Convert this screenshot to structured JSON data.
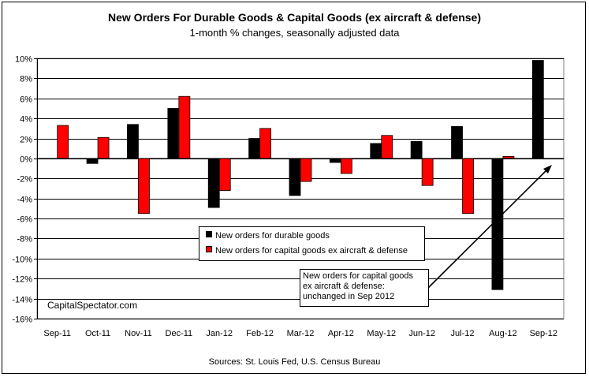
{
  "title": "New Orders For Durable Goods & Capital Goods (ex aircraft & defense)",
  "subtitle": "1-month % changes, seasonally adjusted data",
  "source": "Sources: St. Louis Fed, U.S. Census Bureau",
  "watermark": "CapitalSpectator.com",
  "annotation": {
    "lines": [
      "New orders for capital goods",
      "ex aircraft & defense:",
      "unchanged in Sep 2012"
    ]
  },
  "colors": {
    "durable": "#000000",
    "capital": "#ff0000"
  },
  "chart_data": {
    "type": "bar",
    "title": "New Orders For Durable Goods & Capital Goods (ex aircraft & defense)",
    "subtitle": "1-month % changes, seasonally adjusted data",
    "categories": [
      "Sep-11",
      "Oct-11",
      "Nov-11",
      "Dec-11",
      "Jan-12",
      "Feb-12",
      "Mar-12",
      "Apr-12",
      "May-12",
      "Jun-12",
      "Jul-12",
      "Aug-12",
      "Sep-12"
    ],
    "series": [
      {
        "name": "New orders for durable goods",
        "values": [
          0.0,
          -0.5,
          3.4,
          5.0,
          -4.9,
          2.0,
          -3.7,
          -0.4,
          1.5,
          1.7,
          3.2,
          -13.1,
          9.8
        ]
      },
      {
        "name": "New orders for capital goods ex aircraft & defense",
        "values": [
          3.3,
          2.1,
          -5.5,
          6.2,
          -3.2,
          3.0,
          -2.3,
          -1.5,
          2.3,
          -2.7,
          -5.5,
          0.2,
          0.0
        ]
      }
    ],
    "yticks": [
      "10%",
      "8%",
      "6%",
      "4%",
      "2%",
      "0%",
      "-2%",
      "-4%",
      "-6%",
      "-8%",
      "-10%",
      "-12%",
      "-14%",
      "-16%"
    ],
    "ylim": [
      -16,
      10
    ],
    "grid": true,
    "legend_position": "center"
  }
}
